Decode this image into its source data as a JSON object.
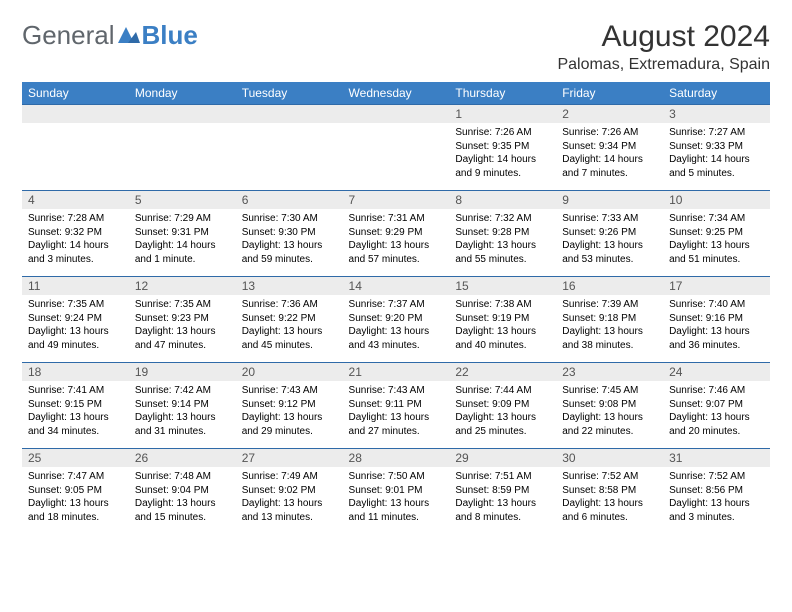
{
  "brand": {
    "general": "General",
    "blue": "Blue"
  },
  "title": "August 2024",
  "location": "Palomas, Extremadura, Spain",
  "colors": {
    "header_bg": "#3b7fc4",
    "header_text": "#ffffff",
    "row_border": "#2f6aa8",
    "daynum_bg": "#ececec",
    "logo_gray": "#60666c",
    "logo_blue": "#3b7fc4"
  },
  "weekdays": [
    "Sunday",
    "Monday",
    "Tuesday",
    "Wednesday",
    "Thursday",
    "Friday",
    "Saturday"
  ],
  "weeks": [
    [
      null,
      null,
      null,
      null,
      {
        "n": "1",
        "sr": "Sunrise: 7:26 AM",
        "ss": "Sunset: 9:35 PM",
        "dl": "Daylight: 14 hours and 9 minutes."
      },
      {
        "n": "2",
        "sr": "Sunrise: 7:26 AM",
        "ss": "Sunset: 9:34 PM",
        "dl": "Daylight: 14 hours and 7 minutes."
      },
      {
        "n": "3",
        "sr": "Sunrise: 7:27 AM",
        "ss": "Sunset: 9:33 PM",
        "dl": "Daylight: 14 hours and 5 minutes."
      }
    ],
    [
      {
        "n": "4",
        "sr": "Sunrise: 7:28 AM",
        "ss": "Sunset: 9:32 PM",
        "dl": "Daylight: 14 hours and 3 minutes."
      },
      {
        "n": "5",
        "sr": "Sunrise: 7:29 AM",
        "ss": "Sunset: 9:31 PM",
        "dl": "Daylight: 14 hours and 1 minute."
      },
      {
        "n": "6",
        "sr": "Sunrise: 7:30 AM",
        "ss": "Sunset: 9:30 PM",
        "dl": "Daylight: 13 hours and 59 minutes."
      },
      {
        "n": "7",
        "sr": "Sunrise: 7:31 AM",
        "ss": "Sunset: 9:29 PM",
        "dl": "Daylight: 13 hours and 57 minutes."
      },
      {
        "n": "8",
        "sr": "Sunrise: 7:32 AM",
        "ss": "Sunset: 9:28 PM",
        "dl": "Daylight: 13 hours and 55 minutes."
      },
      {
        "n": "9",
        "sr": "Sunrise: 7:33 AM",
        "ss": "Sunset: 9:26 PM",
        "dl": "Daylight: 13 hours and 53 minutes."
      },
      {
        "n": "10",
        "sr": "Sunrise: 7:34 AM",
        "ss": "Sunset: 9:25 PM",
        "dl": "Daylight: 13 hours and 51 minutes."
      }
    ],
    [
      {
        "n": "11",
        "sr": "Sunrise: 7:35 AM",
        "ss": "Sunset: 9:24 PM",
        "dl": "Daylight: 13 hours and 49 minutes."
      },
      {
        "n": "12",
        "sr": "Sunrise: 7:35 AM",
        "ss": "Sunset: 9:23 PM",
        "dl": "Daylight: 13 hours and 47 minutes."
      },
      {
        "n": "13",
        "sr": "Sunrise: 7:36 AM",
        "ss": "Sunset: 9:22 PM",
        "dl": "Daylight: 13 hours and 45 minutes."
      },
      {
        "n": "14",
        "sr": "Sunrise: 7:37 AM",
        "ss": "Sunset: 9:20 PM",
        "dl": "Daylight: 13 hours and 43 minutes."
      },
      {
        "n": "15",
        "sr": "Sunrise: 7:38 AM",
        "ss": "Sunset: 9:19 PM",
        "dl": "Daylight: 13 hours and 40 minutes."
      },
      {
        "n": "16",
        "sr": "Sunrise: 7:39 AM",
        "ss": "Sunset: 9:18 PM",
        "dl": "Daylight: 13 hours and 38 minutes."
      },
      {
        "n": "17",
        "sr": "Sunrise: 7:40 AM",
        "ss": "Sunset: 9:16 PM",
        "dl": "Daylight: 13 hours and 36 minutes."
      }
    ],
    [
      {
        "n": "18",
        "sr": "Sunrise: 7:41 AM",
        "ss": "Sunset: 9:15 PM",
        "dl": "Daylight: 13 hours and 34 minutes."
      },
      {
        "n": "19",
        "sr": "Sunrise: 7:42 AM",
        "ss": "Sunset: 9:14 PM",
        "dl": "Daylight: 13 hours and 31 minutes."
      },
      {
        "n": "20",
        "sr": "Sunrise: 7:43 AM",
        "ss": "Sunset: 9:12 PM",
        "dl": "Daylight: 13 hours and 29 minutes."
      },
      {
        "n": "21",
        "sr": "Sunrise: 7:43 AM",
        "ss": "Sunset: 9:11 PM",
        "dl": "Daylight: 13 hours and 27 minutes."
      },
      {
        "n": "22",
        "sr": "Sunrise: 7:44 AM",
        "ss": "Sunset: 9:09 PM",
        "dl": "Daylight: 13 hours and 25 minutes."
      },
      {
        "n": "23",
        "sr": "Sunrise: 7:45 AM",
        "ss": "Sunset: 9:08 PM",
        "dl": "Daylight: 13 hours and 22 minutes."
      },
      {
        "n": "24",
        "sr": "Sunrise: 7:46 AM",
        "ss": "Sunset: 9:07 PM",
        "dl": "Daylight: 13 hours and 20 minutes."
      }
    ],
    [
      {
        "n": "25",
        "sr": "Sunrise: 7:47 AM",
        "ss": "Sunset: 9:05 PM",
        "dl": "Daylight: 13 hours and 18 minutes."
      },
      {
        "n": "26",
        "sr": "Sunrise: 7:48 AM",
        "ss": "Sunset: 9:04 PM",
        "dl": "Daylight: 13 hours and 15 minutes."
      },
      {
        "n": "27",
        "sr": "Sunrise: 7:49 AM",
        "ss": "Sunset: 9:02 PM",
        "dl": "Daylight: 13 hours and 13 minutes."
      },
      {
        "n": "28",
        "sr": "Sunrise: 7:50 AM",
        "ss": "Sunset: 9:01 PM",
        "dl": "Daylight: 13 hours and 11 minutes."
      },
      {
        "n": "29",
        "sr": "Sunrise: 7:51 AM",
        "ss": "Sunset: 8:59 PM",
        "dl": "Daylight: 13 hours and 8 minutes."
      },
      {
        "n": "30",
        "sr": "Sunrise: 7:52 AM",
        "ss": "Sunset: 8:58 PM",
        "dl": "Daylight: 13 hours and 6 minutes."
      },
      {
        "n": "31",
        "sr": "Sunrise: 7:52 AM",
        "ss": "Sunset: 8:56 PM",
        "dl": "Daylight: 13 hours and 3 minutes."
      }
    ]
  ]
}
